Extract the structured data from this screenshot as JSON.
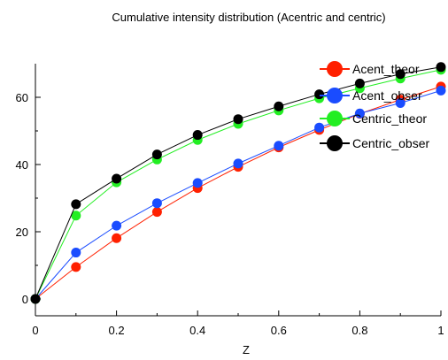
{
  "chart_data": {
    "type": "line",
    "title": "Cumulative intensity distribution (Acentric and centric)",
    "xlabel": "Z",
    "ylabel": "",
    "xlim": [
      0,
      1
    ],
    "ylim": [
      -5,
      70
    ],
    "x_ticks": [
      0,
      0.2,
      0.4,
      0.6,
      0.8,
      1
    ],
    "y_ticks": [
      0,
      20,
      40,
      60
    ],
    "x_tick_labels": [
      "0",
      "0.2",
      "0.4",
      "0.6",
      "0.8",
      "1"
    ],
    "y_tick_labels": [
      "0",
      "20",
      "40",
      "60"
    ],
    "grid": false,
    "legend_position": "top-right",
    "x": [
      0,
      0.1,
      0.2,
      0.3,
      0.4,
      0.5,
      0.6,
      0.7,
      0.8,
      0.9,
      1.0
    ],
    "series": [
      {
        "name": "Acent_theor",
        "color": "#ff2000",
        "values": [
          0,
          9.5,
          18.1,
          25.9,
          33.0,
          39.3,
          45.1,
          50.3,
          55.1,
          59.3,
          63.2
        ]
      },
      {
        "name": "Acent_obser",
        "color": "#1a4cff",
        "values": [
          0,
          13.8,
          21.8,
          28.5,
          34.5,
          40.3,
          45.6,
          51.0,
          55.2,
          58.3,
          62.0
        ]
      },
      {
        "name": "Centric_theor",
        "color": "#22ee22",
        "values": [
          0,
          24.8,
          34.7,
          41.5,
          47.3,
          52.1,
          56.1,
          59.7,
          62.7,
          65.6,
          68.2
        ]
      },
      {
        "name": "Centric_obser",
        "color": "#000000",
        "values": [
          0,
          28.2,
          35.8,
          43.0,
          48.8,
          53.5,
          57.3,
          60.9,
          64.1,
          66.9,
          69.0
        ]
      }
    ]
  }
}
